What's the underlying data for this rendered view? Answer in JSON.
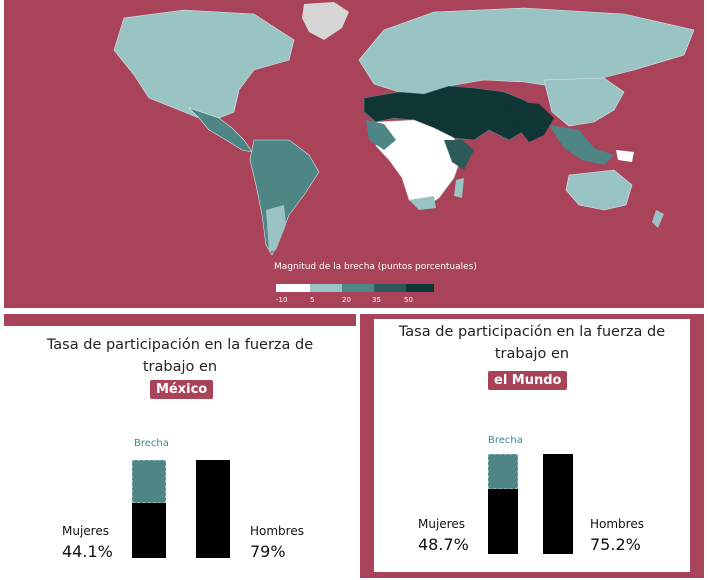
{
  "map": {
    "legend_title": "Magnitud de la brecha (puntos porcentuales)",
    "legend_ticks": [
      "-10",
      "5",
      "20",
      "35",
      "50"
    ],
    "colors": {
      "background": "#a8435a",
      "no_data": "#d6d6d6",
      "bin_1": "#ffffff",
      "bin_2": "#99c4c3",
      "bin_3": "#4d8685",
      "bin_4": "#2b5a59",
      "bin_5": "#0f3634"
    }
  },
  "chart_data": [
    {
      "type": "bar",
      "title": "Tasa de participación en la fuerza de trabajo en",
      "highlight": "México",
      "categories": [
        "Mujeres",
        "Hombres"
      ],
      "values": [
        44.1,
        79
      ],
      "value_labels": [
        "44.1%",
        "79%"
      ],
      "gap_label": "Brecha",
      "gap_value": 34.9,
      "ylim": [
        0,
        79
      ]
    },
    {
      "type": "bar",
      "title": "Tasa de participación en la fuerza de trabajo en",
      "highlight": "el Mundo",
      "categories": [
        "Mujeres",
        "Hombres"
      ],
      "values": [
        48.7,
        75.2
      ],
      "value_labels": [
        "48.7%",
        "75.2%"
      ],
      "gap_label": "Brecha",
      "gap_value": 26.5,
      "ylim": [
        0,
        75.2
      ]
    }
  ],
  "colors": {
    "bar": "#000000",
    "gap": "#4d8685",
    "gap_label": "#3a8a86",
    "accent": "#a8435a"
  }
}
